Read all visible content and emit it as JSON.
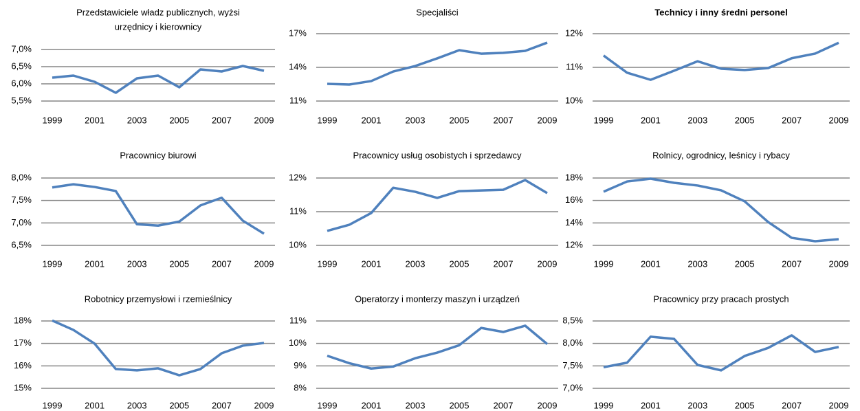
{
  "chart_data": [
    {
      "type": "line",
      "title": [
        "Przedstawiciele władz publicznych, wyżsi",
        "urzędnicy i kierownicy"
      ],
      "x": [
        1999,
        2000,
        2001,
        2002,
        2003,
        2004,
        2005,
        2006,
        2007,
        2008,
        2009
      ],
      "xlim": [
        1999,
        2009
      ],
      "xticks": [
        1999,
        2001,
        2003,
        2005,
        2007,
        2009
      ],
      "ylim": [
        5.5,
        7.0
      ],
      "yticks": [
        {
          "value": 5.5,
          "label": "5,5%"
        },
        {
          "value": 6.0,
          "label": "6,0%"
        },
        {
          "value": 6.5,
          "label": "6,5%"
        },
        {
          "value": 7.0,
          "label": "7,0%"
        }
      ],
      "grid": true,
      "series": [
        {
          "color": "#4f81bd",
          "values": [
            6.18,
            6.24,
            6.06,
            5.74,
            6.16,
            6.24,
            5.9,
            6.42,
            6.36,
            6.52,
            6.38
          ]
        }
      ]
    },
    {
      "type": "line",
      "title": "Specjaliści",
      "x": [
        1999,
        2000,
        2001,
        2002,
        2003,
        2004,
        2005,
        2006,
        2007,
        2008,
        2009
      ],
      "xlim": [
        1999,
        2009
      ],
      "xticks": [
        1999,
        2001,
        2003,
        2005,
        2007,
        2009
      ],
      "ylim": [
        11,
        17
      ],
      "yticks": [
        {
          "value": 11,
          "label": "11%"
        },
        {
          "value": 14,
          "label": "14%"
        },
        {
          "value": 17,
          "label": "17%"
        }
      ],
      "grid": true,
      "series": [
        {
          "color": "#4f81bd",
          "values": [
            12.53,
            12.47,
            12.78,
            13.63,
            14.12,
            14.8,
            15.53,
            15.22,
            15.29,
            15.47,
            16.2
          ]
        }
      ]
    },
    {
      "type": "line",
      "title": "Technicy i inny średni personel",
      "title_bold": true,
      "x": [
        1999,
        2000,
        2001,
        2002,
        2003,
        2004,
        2005,
        2006,
        2007,
        2008,
        2009
      ],
      "xlim": [
        1999,
        2009
      ],
      "xticks": [
        1999,
        2001,
        2003,
        2005,
        2007,
        2009
      ],
      "ylim": [
        10,
        12
      ],
      "yticks": [
        {
          "value": 10,
          "label": "10%"
        },
        {
          "value": 11,
          "label": "11%"
        },
        {
          "value": 12,
          "label": "12%"
        }
      ],
      "grid": true,
      "series": [
        {
          "color": "#4f81bd",
          "values": [
            11.35,
            10.84,
            10.63,
            10.9,
            11.18,
            10.96,
            10.92,
            10.98,
            11.27,
            11.41,
            11.73
          ]
        }
      ]
    },
    {
      "type": "line",
      "title": "Pracownicy biurowi",
      "x": [
        1999,
        2000,
        2001,
        2002,
        2003,
        2004,
        2005,
        2006,
        2007,
        2008,
        2009
      ],
      "xlim": [
        1999,
        2009
      ],
      "xticks": [
        1999,
        2001,
        2003,
        2005,
        2007,
        2009
      ],
      "ylim": [
        6.5,
        8.0
      ],
      "yticks": [
        {
          "value": 6.5,
          "label": "6,5%"
        },
        {
          "value": 7.0,
          "label": "7,0%"
        },
        {
          "value": 7.5,
          "label": "7,5%"
        },
        {
          "value": 8.0,
          "label": "8,0%"
        }
      ],
      "grid": true,
      "series": [
        {
          "color": "#4f81bd",
          "values": [
            7.79,
            7.86,
            7.8,
            7.71,
            6.97,
            6.94,
            7.03,
            7.39,
            7.56,
            7.05,
            6.76
          ]
        }
      ]
    },
    {
      "type": "line",
      "title": "Pracownicy usług osobistych i sprzedawcy",
      "x": [
        1999,
        2000,
        2001,
        2002,
        2003,
        2004,
        2005,
        2006,
        2007,
        2008,
        2009
      ],
      "xlim": [
        1999,
        2009
      ],
      "xticks": [
        1999,
        2001,
        2003,
        2005,
        2007,
        2009
      ],
      "ylim": [
        10,
        12
      ],
      "yticks": [
        {
          "value": 10,
          "label": "10%"
        },
        {
          "value": 11,
          "label": "11%"
        },
        {
          "value": 12,
          "label": "12%"
        }
      ],
      "grid": true,
      "series": [
        {
          "color": "#4f81bd",
          "values": [
            10.43,
            10.61,
            10.96,
            11.71,
            11.59,
            11.41,
            11.61,
            11.63,
            11.65,
            11.94,
            11.55
          ]
        }
      ]
    },
    {
      "type": "line",
      "title": "Rolnicy, ogrodnicy, leśnicy i rybacy",
      "x": [
        1999,
        2000,
        2001,
        2002,
        2003,
        2004,
        2005,
        2006,
        2007,
        2008,
        2009
      ],
      "xlim": [
        1999,
        2009
      ],
      "xticks": [
        1999,
        2001,
        2003,
        2005,
        2007,
        2009
      ],
      "ylim": [
        12,
        18
      ],
      "yticks": [
        {
          "value": 12,
          "label": "12%"
        },
        {
          "value": 14,
          "label": "14%"
        },
        {
          "value": 16,
          "label": "16%"
        },
        {
          "value": 18,
          "label": "18%"
        }
      ],
      "grid": true,
      "series": [
        {
          "color": "#4f81bd",
          "values": [
            16.78,
            17.69,
            17.94,
            17.57,
            17.33,
            16.9,
            15.92,
            14.08,
            12.67,
            12.37,
            12.55
          ]
        }
      ]
    },
    {
      "type": "line",
      "title": "Robotnicy przemysłowi i rzemieślnicy",
      "x": [
        1999,
        2000,
        2001,
        2002,
        2003,
        2004,
        2005,
        2006,
        2007,
        2008,
        2009
      ],
      "xlim": [
        1999,
        2009
      ],
      "xticks": [
        1999,
        2001,
        2003,
        2005,
        2007,
        2009
      ],
      "ylim": [
        15,
        18
      ],
      "yticks": [
        {
          "value": 15,
          "label": "15%"
        },
        {
          "value": 16,
          "label": "16%"
        },
        {
          "value": 17,
          "label": "17%"
        },
        {
          "value": 18,
          "label": "18%"
        }
      ],
      "grid": true,
      "series": [
        {
          "color": "#4f81bd",
          "values": [
            18.02,
            17.6,
            16.99,
            15.86,
            15.8,
            15.89,
            15.58,
            15.86,
            16.56,
            16.9,
            17.02
          ]
        }
      ]
    },
    {
      "type": "line",
      "title": "Operatorzy i monterzy maszyn i urządzeń",
      "x": [
        1999,
        2000,
        2001,
        2002,
        2003,
        2004,
        2005,
        2006,
        2007,
        2008,
        2009
      ],
      "xlim": [
        1999,
        2009
      ],
      "xticks": [
        1999,
        2001,
        2003,
        2005,
        2007,
        2009
      ],
      "ylim": [
        8,
        11
      ],
      "yticks": [
        {
          "value": 8,
          "label": "8%"
        },
        {
          "value": 9,
          "label": "9%"
        },
        {
          "value": 10,
          "label": "10%"
        },
        {
          "value": 11,
          "label": "11%"
        }
      ],
      "grid": true,
      "series": [
        {
          "color": "#4f81bd",
          "values": [
            9.45,
            9.12,
            8.88,
            8.97,
            9.34,
            9.59,
            9.92,
            10.69,
            10.51,
            10.79,
            9.97
          ]
        }
      ]
    },
    {
      "type": "line",
      "title": "Pracownicy przy pracach prostych",
      "x": [
        1999,
        2000,
        2001,
        2002,
        2003,
        2004,
        2005,
        2006,
        2007,
        2008,
        2009
      ],
      "xlim": [
        1999,
        2009
      ],
      "xticks": [
        1999,
        2001,
        2003,
        2005,
        2007,
        2009
      ],
      "ylim": [
        7.0,
        8.5
      ],
      "yticks": [
        {
          "value": 7.0,
          "label": "7,0%"
        },
        {
          "value": 7.5,
          "label": "7,5%"
        },
        {
          "value": 8.0,
          "label": "8,0%"
        },
        {
          "value": 8.5,
          "label": "8,5%"
        }
      ],
      "grid": true,
      "series": [
        {
          "color": "#4f81bd",
          "values": [
            7.47,
            7.57,
            8.15,
            8.1,
            7.52,
            7.4,
            7.72,
            7.9,
            8.18,
            7.81,
            7.92
          ]
        }
      ]
    }
  ]
}
